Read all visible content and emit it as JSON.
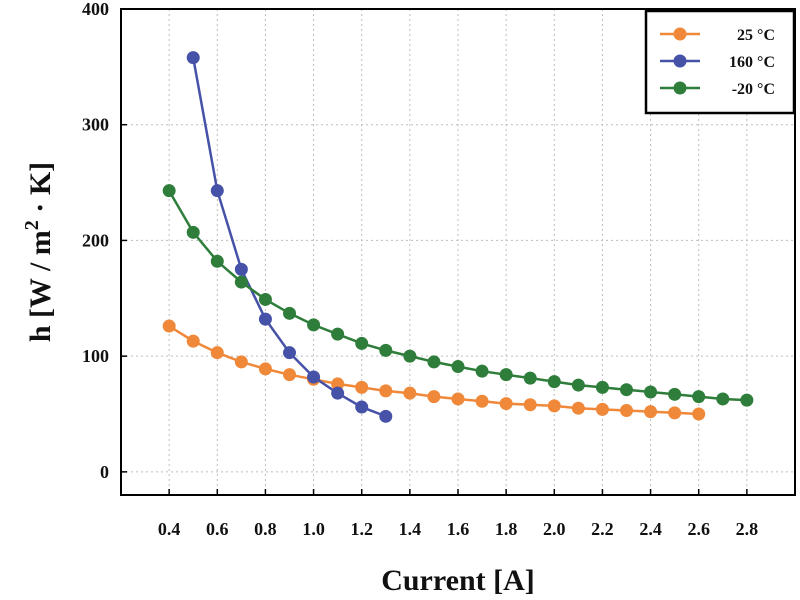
{
  "chart_data": {
    "type": "line",
    "title": "",
    "xlabel": "Current [A]",
    "ylabel": {
      "prefix": "h [W / m",
      "superscript": "2",
      "suffix": " · K]"
    },
    "xlim": [
      0.2,
      3.0
    ],
    "ylim": [
      -20,
      400
    ],
    "xticks": [
      "0.4",
      "0.6",
      "0.8",
      "1.0",
      "1.2",
      "1.4",
      "1.6",
      "1.8",
      "2.0",
      "2.2",
      "2.4",
      "2.6",
      "2.8"
    ],
    "yticks": [
      "0",
      "100",
      "200",
      "300",
      "400"
    ],
    "grid": true,
    "legend_position": "top-right",
    "series": [
      {
        "name": "25 °C",
        "color": "#f0883a",
        "x": [
          0.4,
          0.5,
          0.6,
          0.7,
          0.8,
          0.9,
          1.0,
          1.1,
          1.2,
          1.3,
          1.4,
          1.5,
          1.6,
          1.7,
          1.8,
          1.9,
          2.0,
          2.1,
          2.2,
          2.3,
          2.4,
          2.5,
          2.6
        ],
        "y": [
          126,
          113,
          103,
          95,
          89,
          84,
          80,
          76,
          73,
          70,
          68,
          65,
          63,
          61,
          59,
          58,
          57,
          55,
          54,
          53,
          52,
          51,
          50
        ]
      },
      {
        "name": "160 °C",
        "color": "#4652a8",
        "x": [
          0.5,
          0.6,
          0.7,
          0.8,
          0.9,
          1.0,
          1.1,
          1.2,
          1.3
        ],
        "y": [
          358,
          243,
          175,
          132,
          103,
          82,
          68,
          56,
          48
        ]
      },
      {
        "name": "-20 °C",
        "color": "#2e7d3a",
        "x": [
          0.4,
          0.5,
          0.6,
          0.7,
          0.8,
          0.9,
          1.0,
          1.1,
          1.2,
          1.3,
          1.4,
          1.5,
          1.6,
          1.7,
          1.8,
          1.9,
          2.0,
          2.1,
          2.2,
          2.3,
          2.4,
          2.5,
          2.6,
          2.7,
          2.8
        ],
        "y": [
          243,
          207,
          182,
          164,
          149,
          137,
          127,
          119,
          111,
          105,
          100,
          95,
          91,
          87,
          84,
          81,
          78,
          75,
          73,
          71,
          69,
          67,
          65,
          63,
          62
        ]
      }
    ]
  }
}
